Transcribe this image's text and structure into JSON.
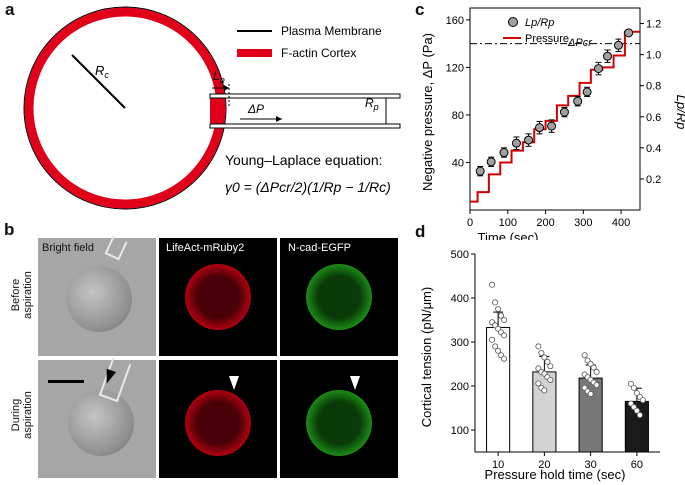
{
  "panels": {
    "a": "a",
    "b": "b",
    "c": "c",
    "d": "d"
  },
  "panel_a": {
    "legend": {
      "membrane": "Plasma Membrane",
      "cortex": "F-actin Cortex"
    },
    "labels": {
      "rc": "R",
      "rc_sub": "c",
      "lp": "L",
      "lp_sub": "p",
      "dp": "ΔP",
      "rp": "R",
      "rp_sub": "p"
    },
    "equation_title": "Young–Laplace equation:",
    "equation": "γ0 = (ΔPcr/2)(1/Rp − 1/Rc)",
    "colors": {
      "cortex": "#e0001a",
      "membrane": "#000000"
    }
  },
  "panel_b": {
    "columns": [
      "Bright field",
      "LifeAct-mRuby2",
      "N-cad-EGFP"
    ],
    "rows": [
      "Before aspiration",
      "During aspiration"
    ],
    "row_lines": [
      [
        "Before",
        "aspiration"
      ],
      [
        "During",
        "aspiration"
      ]
    ]
  },
  "chart_data": [
    {
      "type": "scatter",
      "panel": "c",
      "xlabel": "Time (sec)",
      "ylabel": "Negative pressure, ΔP (Pa)",
      "y2label": "Lp/Rp",
      "xlim": [
        0,
        450
      ],
      "ylim": [
        0,
        170
      ],
      "y2lim": [
        0,
        1.3
      ],
      "xticks": [
        0,
        100,
        200,
        300,
        400
      ],
      "yticks": [
        40,
        80,
        120,
        160
      ],
      "y2ticks": [
        0.2,
        0.4,
        0.6,
        0.8,
        1.0,
        1.2
      ],
      "legend": [
        "Lp/Rp",
        "Pressure"
      ],
      "annotation": "ΔPcr",
      "critical_pressure": 140,
      "series": [
        {
          "name": "Lp/Rp",
          "axis": "right",
          "x": [
            27,
            56,
            90,
            123,
            155,
            184,
            216,
            250,
            285,
            310,
            340,
            364,
            393,
            420
          ],
          "y": [
            0.25,
            0.31,
            0.37,
            0.43,
            0.45,
            0.53,
            0.54,
            0.63,
            0.7,
            0.76,
            0.91,
            0.99,
            1.06,
            1.14
          ],
          "err": [
            0.03,
            0.03,
            0.03,
            0.04,
            0.04,
            0.04,
            0.04,
            0.03,
            0.03,
            0.03,
            0.04,
            0.04,
            0.04,
            0.02
          ]
        },
        {
          "name": "Pressure",
          "axis": "left",
          "type": "step",
          "x": [
            0,
            20,
            20,
            50,
            50,
            80,
            80,
            110,
            110,
            140,
            140,
            170,
            170,
            200,
            200,
            230,
            230,
            260,
            260,
            290,
            290,
            320,
            320,
            350,
            350,
            380,
            380,
            410,
            410,
            450
          ],
          "y": [
            7,
            7,
            15,
            15,
            30,
            30,
            40,
            40,
            50,
            50,
            57,
            57,
            68,
            68,
            75,
            75,
            88,
            88,
            96,
            96,
            107,
            107,
            118,
            118,
            120,
            120,
            130,
            130,
            150,
            150
          ]
        }
      ]
    },
    {
      "type": "bar",
      "panel": "d",
      "xlabel": "Pressure hold time (sec)",
      "ylabel": "Cortical tension (pN/μm)",
      "categories": [
        "10",
        "20",
        "30",
        "60"
      ],
      "values": [
        333,
        232,
        218,
        165
      ],
      "errors": [
        35,
        35,
        30,
        30
      ],
      "ylim": [
        50,
        500
      ],
      "yticks": [
        100,
        200,
        300,
        400,
        500
      ],
      "colors": [
        "#ffffff",
        "#d3d3d3",
        "#777777",
        "#1a1a1a"
      ],
      "points": [
        [
          430,
          390,
          375,
          360,
          350,
          345,
          338,
          330,
          322,
          315,
          305,
          290,
          280,
          270,
          262
        ],
        [
          290,
          275,
          265,
          255,
          245,
          240,
          232,
          228,
          220,
          214,
          206,
          196,
          190
        ],
        [
          270,
          258,
          250,
          242,
          232,
          226,
          220,
          214,
          208,
          202,
          196,
          188,
          182
        ],
        [
          205,
          196,
          184,
          175,
          168,
          160,
          152,
          144,
          134
        ]
      ]
    }
  ]
}
